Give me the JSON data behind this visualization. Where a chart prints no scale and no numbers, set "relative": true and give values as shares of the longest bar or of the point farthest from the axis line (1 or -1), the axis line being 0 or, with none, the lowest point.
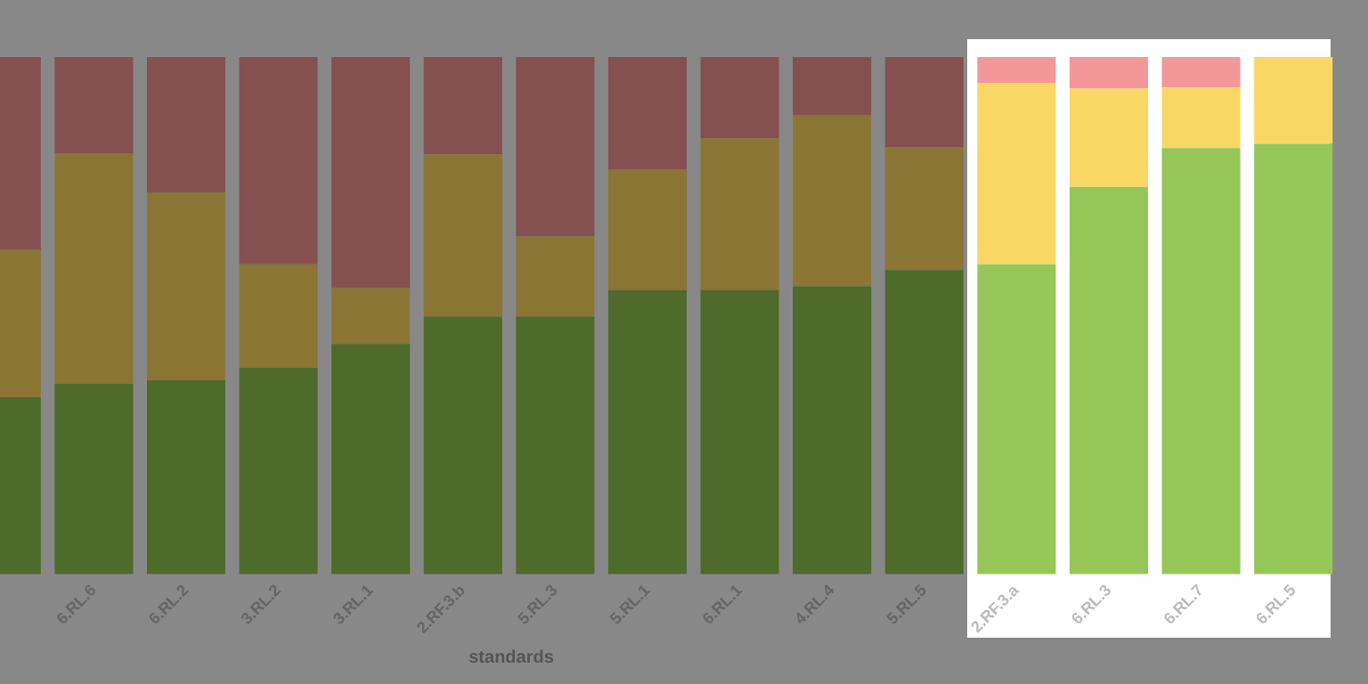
{
  "chart_data": {
    "type": "bar",
    "stacked": true,
    "relative": true,
    "xlabel": "standards",
    "legend": false,
    "grid": false,
    "categories": [
      null,
      "6.RL.6",
      "6.RL.2",
      "3.RL.2",
      "3.RL.1",
      "2.RF.3.b",
      "5.RL.3",
      "5.RL.1",
      "6.RL.1",
      "4.RL.4",
      "5.RL.5",
      "2.RF.3.a",
      "6.RL.3",
      "6.RL.7",
      "6.RL.5"
    ],
    "series": [
      {
        "colors": [
          "#4e6b2c",
          "#4e6b2c",
          "#4e6b2c",
          "#4e6b2c",
          "#4e6b2c",
          "#4e6b2c",
          "#4e6b2c",
          "#4e6b2c",
          "#4e6b2c",
          "#4e6b2c",
          "#4e6b2c",
          "#96c657",
          "#96c657",
          "#96c657",
          "#96c657"
        ],
        "values": [
          0.342,
          0.368,
          0.375,
          0.399,
          0.445,
          0.498,
          0.498,
          0.549,
          0.549,
          0.556,
          0.588,
          0.599,
          0.749,
          0.824,
          0.832
        ]
      },
      {
        "colors": [
          "#8a7535",
          "#8a7535",
          "#8a7535",
          "#8a7535",
          "#8a7535",
          "#8a7535",
          "#8a7535",
          "#8a7535",
          "#8a7535",
          "#8a7535",
          "#8a7535",
          "#f8d765",
          "#f8d765",
          "#f8d765",
          "#f8d765"
        ],
        "values": [
          0.285,
          0.445,
          0.363,
          0.2,
          0.108,
          0.314,
          0.155,
          0.233,
          0.294,
          0.332,
          0.237,
          0.351,
          0.19,
          0.117,
          0.168
        ]
      },
      {
        "colors": [
          "#855050",
          "#855050",
          "#855050",
          "#855050",
          "#855050",
          "#855050",
          "#855050",
          "#855050",
          "#855050",
          "#855050",
          "#855050",
          "#f29898",
          "#f29898",
          "#f29898",
          "#f29898"
        ],
        "values": [
          0.373,
          0.187,
          0.262,
          0.401,
          0.447,
          0.188,
          0.347,
          0.218,
          0.157,
          0.112,
          0.175,
          0.05,
          0.061,
          0.059,
          0
        ]
      }
    ]
  }
}
